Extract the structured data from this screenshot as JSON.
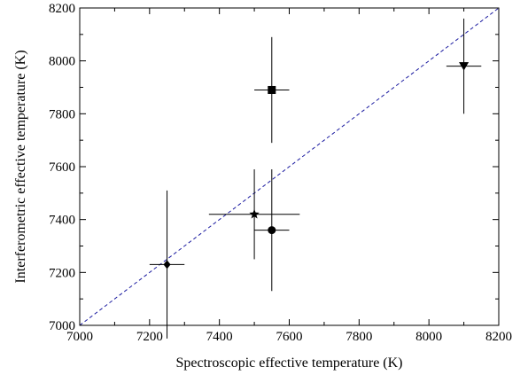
{
  "chart_data": {
    "type": "scatter",
    "title": "",
    "xlabel": "Spectroscopic effective temperature (K)",
    "ylabel": "Interferometric effective temperature (K)",
    "xlim": [
      7000,
      8200
    ],
    "ylim": [
      7000,
      8200
    ],
    "x_ticks": [
      "7000",
      "7200",
      "7400",
      "7600",
      "7800",
      "8000",
      "8200"
    ],
    "y_ticks": [
      "7000",
      "7200",
      "7400",
      "7600",
      "7800",
      "8000",
      "8200"
    ],
    "grid": false,
    "legend": "none",
    "reference_line": {
      "from": [
        7000,
        7000
      ],
      "to": [
        8200,
        8200
      ],
      "style": "dashed",
      "color": "#1a1aa0"
    },
    "points": [
      {
        "x": 7250,
        "y": 7230,
        "xerr": 50,
        "yerr": 280,
        "marker": "diamond"
      },
      {
        "x": 7500,
        "y": 7420,
        "xerr": 130,
        "yerr": 170,
        "marker": "star"
      },
      {
        "x": 7550,
        "y": 7360,
        "xerr": 50,
        "yerr": 230,
        "marker": "circle"
      },
      {
        "x": 7550,
        "y": 7890,
        "xerr": 50,
        "yerr": 200,
        "marker": "square"
      },
      {
        "x": 8100,
        "y": 7980,
        "xerr": 50,
        "yerr": 180,
        "marker": "triangle-down"
      }
    ]
  }
}
